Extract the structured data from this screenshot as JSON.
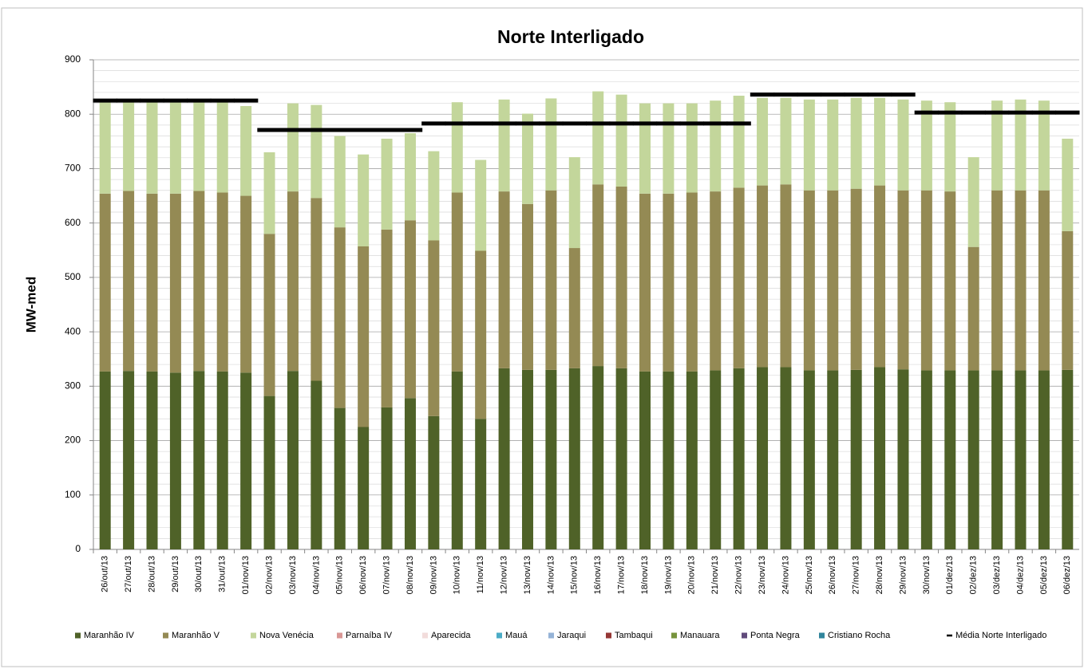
{
  "chart_data": {
    "type": "bar",
    "stacked": true,
    "title": "Norte Interligado",
    "y_label": "MW-med",
    "categories": [
      "26/out/13",
      "27/out/13",
      "28/out/13",
      "29/out/13",
      "30/out/13",
      "31/out/13",
      "01/nov/13",
      "02/nov/13",
      "03/nov/13",
      "04/nov/13",
      "05/nov/13",
      "06/nov/13",
      "07/nov/13",
      "08/nov/13",
      "09/nov/13",
      "10/nov/13",
      "11/nov/13",
      "12/nov/13",
      "13/nov/13",
      "14/nov/13",
      "15/nov/13",
      "16/nov/13",
      "17/nov/13",
      "18/nov/13",
      "19/nov/13",
      "20/nov/13",
      "21/nov/13",
      "22/nov/13",
      "23/nov/13",
      "24/nov/13",
      "25/nov/13",
      "26/nov/13",
      "27/nov/13",
      "28/nov/13",
      "29/nov/13",
      "30/nov/13",
      "01/dez/13",
      "02/dez/13",
      "03/dez/13",
      "04/dez/13",
      "05/dez/13",
      "06/dez/13"
    ],
    "series": [
      {
        "name": "Maranhão IV",
        "color": "#4f6228",
        "values": [
          327,
          328,
          327,
          325,
          328,
          327,
          325,
          282,
          328,
          310,
          260,
          225,
          261,
          278,
          245,
          327,
          240,
          333,
          330,
          330,
          333,
          337,
          333,
          327,
          327,
          327,
          329,
          333,
          335,
          335,
          329,
          329,
          330,
          335,
          331,
          329,
          329,
          329,
          329,
          329,
          329,
          330
        ]
      },
      {
        "name": "Maranhão V",
        "color": "#948a54",
        "values": [
          327,
          331,
          327,
          329,
          331,
          329,
          325,
          298,
          330,
          336,
          332,
          332,
          327,
          327,
          323,
          329,
          309,
          325,
          305,
          330,
          221,
          334,
          334,
          327,
          327,
          329,
          329,
          332,
          334,
          336,
          331,
          331,
          333,
          334,
          329,
          331,
          329,
          227,
          331,
          331,
          331,
          255
        ]
      },
      {
        "name": "Nova Venécia",
        "color": "#c3d69b",
        "values": [
          168,
          163,
          168,
          168,
          163,
          166,
          165,
          150,
          162,
          171,
          168,
          169,
          167,
          160,
          164,
          166,
          167,
          169,
          166,
          169,
          167,
          171,
          169,
          166,
          166,
          164,
          167,
          169,
          161,
          159,
          167,
          167,
          167,
          161,
          167,
          165,
          164,
          165,
          165,
          167,
          165,
          170
        ]
      },
      {
        "name": "Parnaíba IV",
        "color": "#d99795",
        "values": [
          0,
          0,
          0,
          0,
          0,
          0,
          0,
          0,
          0,
          0,
          0,
          0,
          0,
          0,
          0,
          0,
          0,
          0,
          0,
          0,
          0,
          0,
          0,
          0,
          0,
          0,
          0,
          0,
          0,
          0,
          0,
          0,
          0,
          0,
          0,
          0,
          0,
          0,
          0,
          0,
          0,
          0
        ]
      },
      {
        "name": "Aparecida",
        "color": "#f2dcdb",
        "values": [
          0,
          0,
          0,
          0,
          0,
          0,
          0,
          0,
          0,
          0,
          0,
          0,
          0,
          0,
          0,
          0,
          0,
          0,
          0,
          0,
          0,
          0,
          0,
          0,
          0,
          0,
          0,
          0,
          0,
          0,
          0,
          0,
          0,
          0,
          0,
          0,
          0,
          0,
          0,
          0,
          0,
          0
        ]
      },
      {
        "name": "Mauá",
        "color": "#4bacc6",
        "values": [
          0,
          0,
          0,
          0,
          0,
          0,
          0,
          0,
          0,
          0,
          0,
          0,
          0,
          0,
          0,
          0,
          0,
          0,
          0,
          0,
          0,
          0,
          0,
          0,
          0,
          0,
          0,
          0,
          0,
          0,
          0,
          0,
          0,
          0,
          0,
          0,
          0,
          0,
          0,
          0,
          0,
          0
        ]
      },
      {
        "name": "Jaraqui",
        "color": "#95b3d7",
        "values": [
          0,
          0,
          0,
          0,
          0,
          0,
          0,
          0,
          0,
          0,
          0,
          0,
          0,
          0,
          0,
          0,
          0,
          0,
          0,
          0,
          0,
          0,
          0,
          0,
          0,
          0,
          0,
          0,
          0,
          0,
          0,
          0,
          0,
          0,
          0,
          0,
          0,
          0,
          0,
          0,
          0,
          0
        ]
      },
      {
        "name": "Tambaqui",
        "color": "#953735",
        "values": [
          0,
          0,
          0,
          0,
          0,
          0,
          0,
          0,
          0,
          0,
          0,
          0,
          0,
          0,
          0,
          0,
          0,
          0,
          0,
          0,
          0,
          0,
          0,
          0,
          0,
          0,
          0,
          0,
          0,
          0,
          0,
          0,
          0,
          0,
          0,
          0,
          0,
          0,
          0,
          0,
          0,
          0
        ]
      },
      {
        "name": "Manauara",
        "color": "#77933c",
        "values": [
          0,
          0,
          0,
          0,
          0,
          0,
          0,
          0,
          0,
          0,
          0,
          0,
          0,
          0,
          0,
          0,
          0,
          0,
          0,
          0,
          0,
          0,
          0,
          0,
          0,
          0,
          0,
          0,
          0,
          0,
          0,
          0,
          0,
          0,
          0,
          0,
          0,
          0,
          0,
          0,
          0,
          0
        ]
      },
      {
        "name": "Ponta Negra",
        "color": "#604a7b",
        "values": [
          0,
          0,
          0,
          0,
          0,
          0,
          0,
          0,
          0,
          0,
          0,
          0,
          0,
          0,
          0,
          0,
          0,
          0,
          0,
          0,
          0,
          0,
          0,
          0,
          0,
          0,
          0,
          0,
          0,
          0,
          0,
          0,
          0,
          0,
          0,
          0,
          0,
          0,
          0,
          0,
          0,
          0
        ]
      },
      {
        "name": "Cristiano Rocha",
        "color": "#31859c",
        "values": [
          0,
          0,
          0,
          0,
          0,
          0,
          0,
          0,
          0,
          0,
          0,
          0,
          0,
          0,
          0,
          0,
          0,
          0,
          0,
          0,
          0,
          0,
          0,
          0,
          0,
          0,
          0,
          0,
          0,
          0,
          0,
          0,
          0,
          0,
          0,
          0,
          0,
          0,
          0,
          0,
          0,
          0
        ]
      },
      {
        "name": "Média Norte Interligado",
        "color": "#000000",
        "type": "line",
        "values": [
          825,
          825,
          825,
          825,
          825,
          825,
          825,
          771,
          771,
          771,
          771,
          771,
          771,
          771,
          783,
          783,
          783,
          783,
          783,
          783,
          783,
          783,
          783,
          783,
          783,
          783,
          783,
          783,
          836,
          836,
          836,
          836,
          836,
          836,
          836,
          803,
          803,
          803,
          803,
          803,
          803,
          803
        ]
      }
    ],
    "ylim": [
      0,
      900
    ],
    "yticks": [
      0,
      100,
      200,
      300,
      400,
      500,
      600,
      700,
      800,
      900
    ],
    "grid": true
  }
}
